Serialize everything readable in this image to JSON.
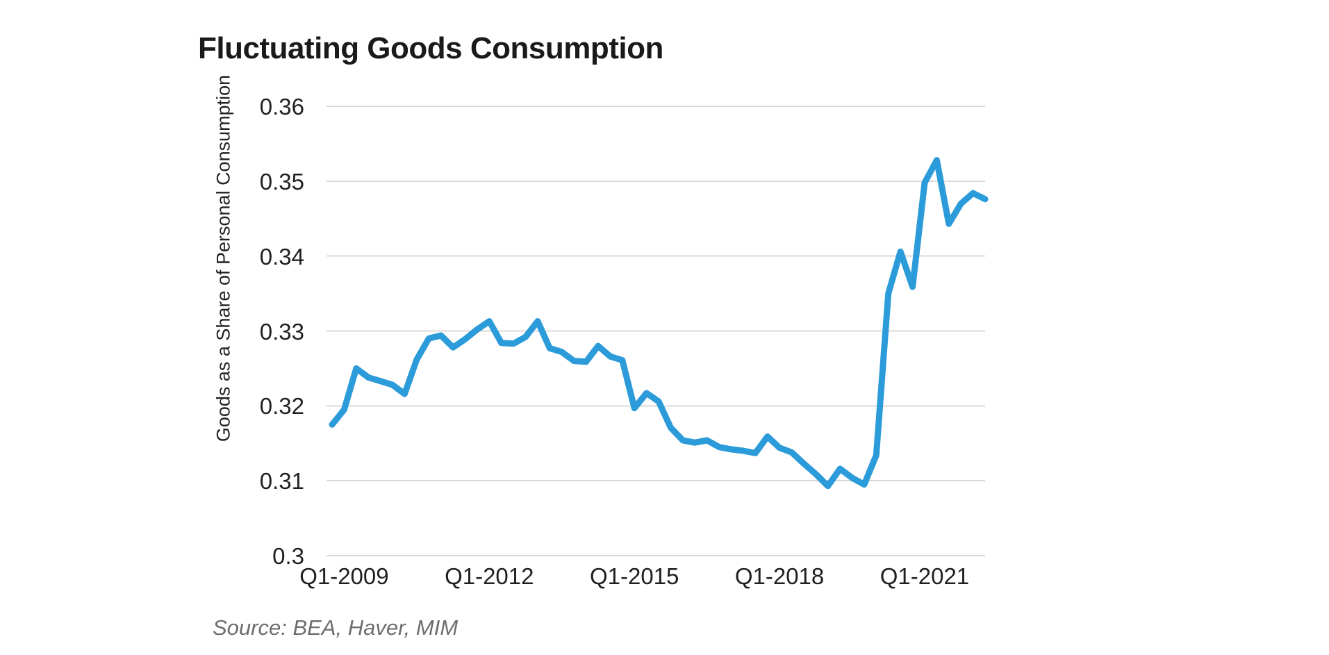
{
  "page": {
    "background_color": "#FFFFFF"
  },
  "header": {
    "title": "Fluctuating Goods Consumption"
  },
  "footer": {
    "source": "Source: BEA, Haver, MIM"
  },
  "chart_data": {
    "type": "line",
    "title": "Fluctuating Goods Consumption",
    "xlabel": "",
    "ylabel": "Goods as a Share of Personal Consumption",
    "ylim": [
      0.3,
      0.36
    ],
    "y_ticks": [
      0.3,
      0.31,
      0.32,
      0.33,
      0.34,
      0.35,
      0.36
    ],
    "y_tick_labels": [
      "0.3",
      "0.31",
      "0.32",
      "0.33",
      "0.34",
      "0.35",
      "0.36"
    ],
    "x_tick_labels": [
      "Q1-2009",
      "Q1-2012",
      "Q1-2015",
      "Q1-2018",
      "Q1-2021"
    ],
    "grid": "horizontal",
    "legend_position": "none",
    "line_color": "#2B9BD9",
    "grid_color": "#D9D9D9",
    "tick_text_color": "#1F1F1E",
    "source_text_color": "#6D6D6D",
    "series": [
      {
        "name": "Goods as a Share of Personal Consumption",
        "x": [
          "Q4-2008",
          "Q1-2009",
          "Q2-2009",
          "Q3-2009",
          "Q4-2009",
          "Q1-2010",
          "Q2-2010",
          "Q3-2010",
          "Q4-2010",
          "Q1-2011",
          "Q2-2011",
          "Q3-2011",
          "Q4-2011",
          "Q1-2012",
          "Q2-2012",
          "Q3-2012",
          "Q4-2012",
          "Q1-2013",
          "Q2-2013",
          "Q3-2013",
          "Q4-2013",
          "Q1-2014",
          "Q2-2014",
          "Q3-2014",
          "Q4-2014",
          "Q1-2015",
          "Q2-2015",
          "Q3-2015",
          "Q4-2015",
          "Q1-2016",
          "Q2-2016",
          "Q3-2016",
          "Q4-2016",
          "Q1-2017",
          "Q2-2017",
          "Q3-2017",
          "Q4-2017",
          "Q1-2018",
          "Q2-2018",
          "Q3-2018",
          "Q4-2018",
          "Q1-2019",
          "Q2-2019",
          "Q3-2019",
          "Q4-2019",
          "Q1-2020",
          "Q2-2020",
          "Q3-2020",
          "Q4-2020",
          "Q1-2021",
          "Q2-2021",
          "Q3-2021",
          "Q4-2021",
          "Q1-2022",
          "Q2-2022"
        ],
        "values": [
          0.3175,
          0.3195,
          0.325,
          0.3238,
          0.3233,
          0.3228,
          0.3216,
          0.3262,
          0.329,
          0.3294,
          0.3278,
          0.3289,
          0.3302,
          0.3313,
          0.3284,
          0.3283,
          0.3292,
          0.3313,
          0.3277,
          0.3272,
          0.326,
          0.3259,
          0.328,
          0.3266,
          0.3261,
          0.3197,
          0.3217,
          0.3206,
          0.3171,
          0.3154,
          0.3151,
          0.3154,
          0.3145,
          0.3142,
          0.314,
          0.3137,
          0.3159,
          0.3144,
          0.3138,
          0.3123,
          0.3109,
          0.3093,
          0.3116,
          0.3104,
          0.3095,
          0.3134,
          0.335,
          0.3406,
          0.3359,
          0.3498,
          0.3528,
          0.3443,
          0.347,
          0.3484,
          0.3476
        ]
      }
    ]
  }
}
